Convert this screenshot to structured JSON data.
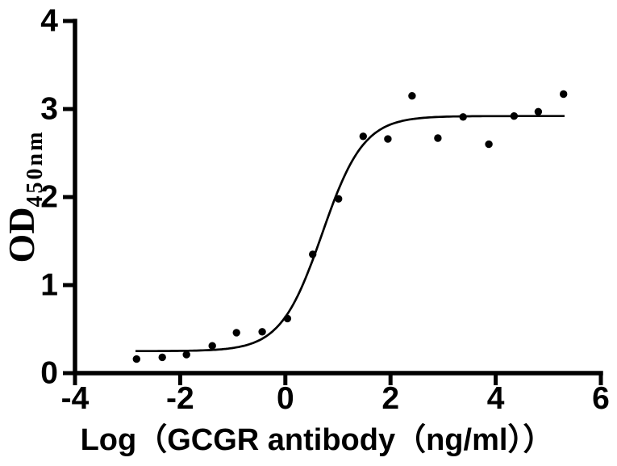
{
  "page": {
    "background_color": "#ffffff",
    "ink_color": "#000000"
  },
  "chart_data": {
    "type": "scatter",
    "title": "",
    "xlabel": "Log（GCGR antibody（ng/ml））",
    "ylabel_base": "OD",
    "ylabel_subscript": "450nm",
    "xlim": [
      -4,
      6
    ],
    "ylim": [
      0,
      4
    ],
    "xticks": [
      -4,
      -2,
      0,
      2,
      4,
      6
    ],
    "xtick_labels": [
      "-4",
      "-2",
      "0",
      "2",
      "4",
      "6"
    ],
    "yticks": [
      0,
      1,
      2,
      3,
      4
    ],
    "ytick_labels": [
      "0",
      "1",
      "2",
      "3",
      "4"
    ],
    "grid": false,
    "legend": null,
    "marker": {
      "shape": "circle",
      "color": "#000000",
      "radius_px": 4.7
    },
    "curve_color": "#000000",
    "points": [
      [
        -2.83,
        0.16
      ],
      [
        -2.34,
        0.18
      ],
      [
        -1.88,
        0.21
      ],
      [
        -1.39,
        0.31
      ],
      [
        -0.93,
        0.46
      ],
      [
        -0.44,
        0.47
      ],
      [
        0.04,
        0.62
      ],
      [
        0.52,
        1.35
      ],
      [
        1.01,
        1.98
      ],
      [
        1.48,
        2.69
      ],
      [
        1.95,
        2.66
      ],
      [
        2.41,
        3.15
      ],
      [
        2.9,
        2.67
      ],
      [
        3.38,
        2.91
      ],
      [
        3.87,
        2.6
      ],
      [
        4.35,
        2.92
      ],
      [
        4.81,
        2.97
      ],
      [
        5.29,
        3.17
      ]
    ],
    "fit_curve": {
      "model": "four_parameter_logistic",
      "bottom": 0.25,
      "top": 2.92,
      "logEC50": 0.7,
      "hillslope": 1.1,
      "x_start": -2.85,
      "x_end": 5.32
    }
  }
}
